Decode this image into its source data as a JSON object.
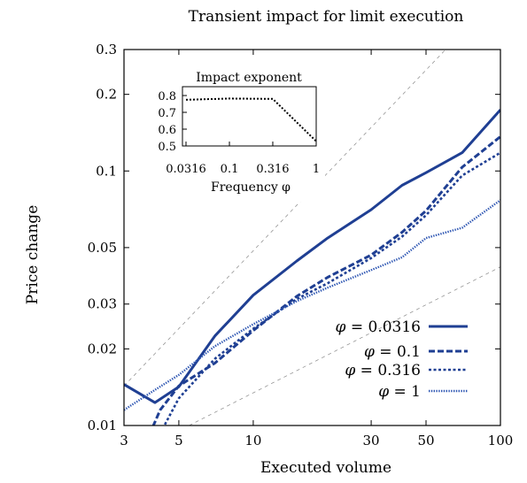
{
  "chart_data": [
    {
      "type": "line",
      "title": "Transient impact for limit execution",
      "xlabel": "Executed volume",
      "ylabel": "Price change",
      "xscale": "log",
      "yscale": "log",
      "xlim": [
        3,
        100
      ],
      "ylim": [
        0.01,
        0.3
      ],
      "xticks": [
        3,
        5,
        10,
        30,
        50,
        100
      ],
      "xtick_labels": [
        "3",
        "5",
        "10",
        "30",
        "50",
        "100"
      ],
      "yticks": [
        0.01,
        0.02,
        0.03,
        0.05,
        0.1,
        0.2,
        0.3
      ],
      "ytick_labels": [
        "0.01",
        "0.02",
        "0.03",
        "0.05",
        "0.1",
        "0.2",
        "0.3"
      ],
      "grid": false,
      "legend_position": "bottom-right",
      "series": [
        {
          "name": "φ = 0.0316",
          "style": "solid",
          "color": "#1f3f93",
          "x": [
            3,
            4,
            5,
            7,
            10,
            15,
            20,
            30,
            40,
            50,
            70,
            100
          ],
          "y": [
            0.0145,
            0.0123,
            0.0142,
            0.0225,
            0.0325,
            0.0443,
            0.0545,
            0.0705,
            0.0878,
            0.0985,
            0.118,
            0.174
          ]
        },
        {
          "name": "φ = 0.1",
          "style": "dashed",
          "color": "#1f3f93",
          "x": [
            3.8,
            4.2,
            5,
            7,
            10,
            15,
            20,
            30,
            40,
            50,
            70,
            100
          ],
          "y": [
            0.0092,
            0.0115,
            0.0143,
            0.0176,
            0.0236,
            0.0322,
            0.0382,
            0.0468,
            0.0574,
            0.0698,
            0.1035,
            0.1365
          ]
        },
        {
          "name": "φ = 0.316",
          "style": "dotted",
          "color": "#1f3f93",
          "x": [
            4.3,
            5,
            7,
            10,
            15,
            20,
            30,
            40,
            50,
            70,
            100
          ],
          "y": [
            0.0097,
            0.0128,
            0.0183,
            0.024,
            0.0314,
            0.0362,
            0.0455,
            0.0552,
            0.067,
            0.096,
            0.118
          ]
        },
        {
          "name": "φ = 1",
          "style": "fine-dotted",
          "color": "#2f57b3",
          "x": [
            3,
            4,
            5,
            7,
            10,
            15,
            20,
            30,
            40,
            50,
            70,
            100
          ],
          "y": [
            0.0115,
            0.0138,
            0.0158,
            0.0205,
            0.025,
            0.0308,
            0.0348,
            0.0408,
            0.0458,
            0.0545,
            0.0598,
            0.0768
          ]
        }
      ],
      "reference_lines": [
        {
          "style": "thin-dashed",
          "color": "#888888",
          "x": [
            3,
            60
          ],
          "y": [
            0.0143,
            0.3
          ]
        },
        {
          "style": "thin-dashed",
          "color": "#888888",
          "x": [
            5.5,
            100
          ],
          "y": [
            0.01,
            0.042
          ]
        }
      ],
      "legend": {
        "entries": [
          {
            "label_var": "φ",
            "label_eq": " = 0.0316"
          },
          {
            "label_var": "φ",
            "label_eq": " = 0.1"
          },
          {
            "label_var": "φ",
            "label_eq": " = 0.316"
          },
          {
            "label_var": "φ",
            "label_eq": " = 1"
          }
        ]
      }
    },
    {
      "type": "line",
      "title": "Impact exponent",
      "xlabel": "Frequency φ",
      "ylabel": "",
      "xscale": "log",
      "xlim": [
        0.0316,
        1
      ],
      "ylim": [
        0.5,
        0.8
      ],
      "xticks": [
        0.0316,
        0.1,
        0.316,
        1
      ],
      "xtick_labels": [
        "0.0316",
        "0.1",
        "0.316",
        "1"
      ],
      "yticks": [
        0.5,
        0.6,
        0.7,
        0.8
      ],
      "ytick_labels": [
        "0.5",
        "0.6",
        "0.7",
        "0.8"
      ],
      "series": [
        {
          "style": "dotted",
          "color": "#000000",
          "x": [
            0.0316,
            0.1,
            0.316,
            1
          ],
          "y": [
            0.775,
            0.782,
            0.78,
            0.528
          ]
        }
      ]
    }
  ]
}
